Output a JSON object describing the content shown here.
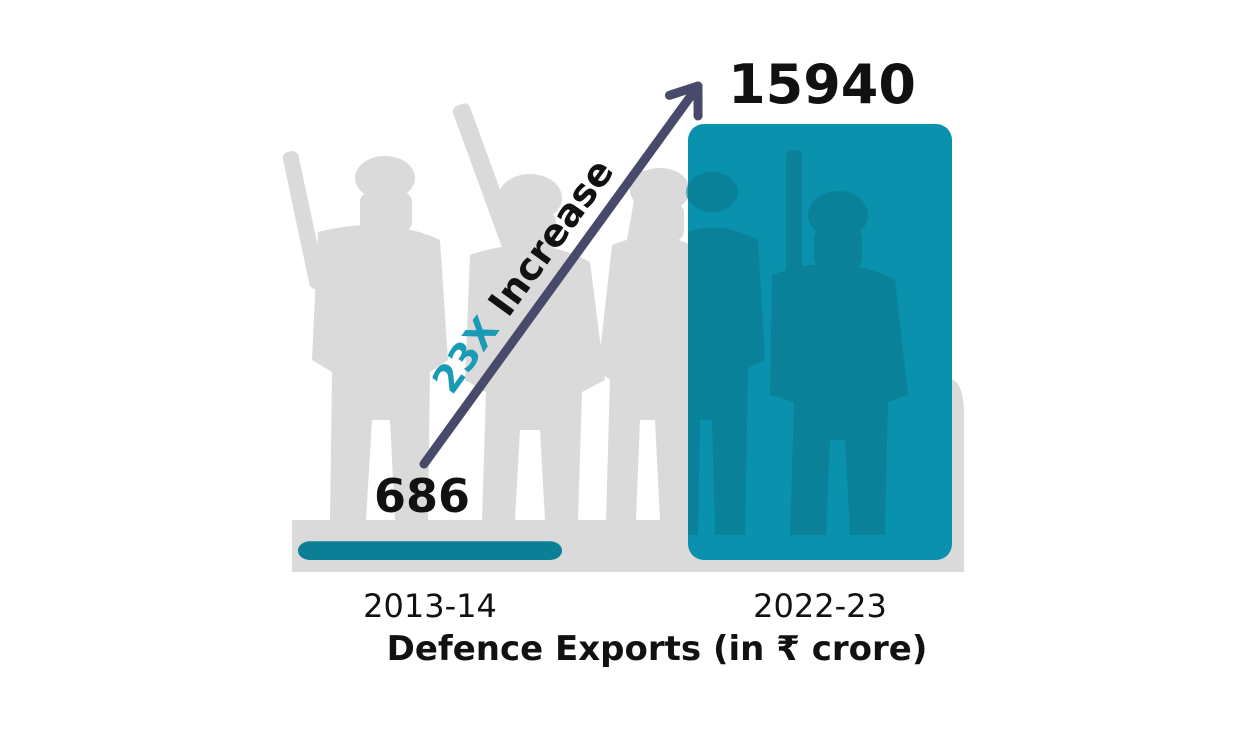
{
  "chart_data": {
    "type": "bar",
    "title": "Defence Exports (in ₹ crore)",
    "categories": [
      "2013-14",
      "2022-23"
    ],
    "values": [
      686,
      15940
    ],
    "value_labels": [
      "686",
      "15940"
    ],
    "annotation": {
      "multiplier": "23X",
      "text": " Increase"
    },
    "colors": {
      "bar": "#0a91ad",
      "bar_small": "#0a7f96",
      "arrow": "#474a6b",
      "multiplier": "#1a9bb5",
      "silhouette": "#dadada"
    },
    "grid": false,
    "legend": "none"
  }
}
